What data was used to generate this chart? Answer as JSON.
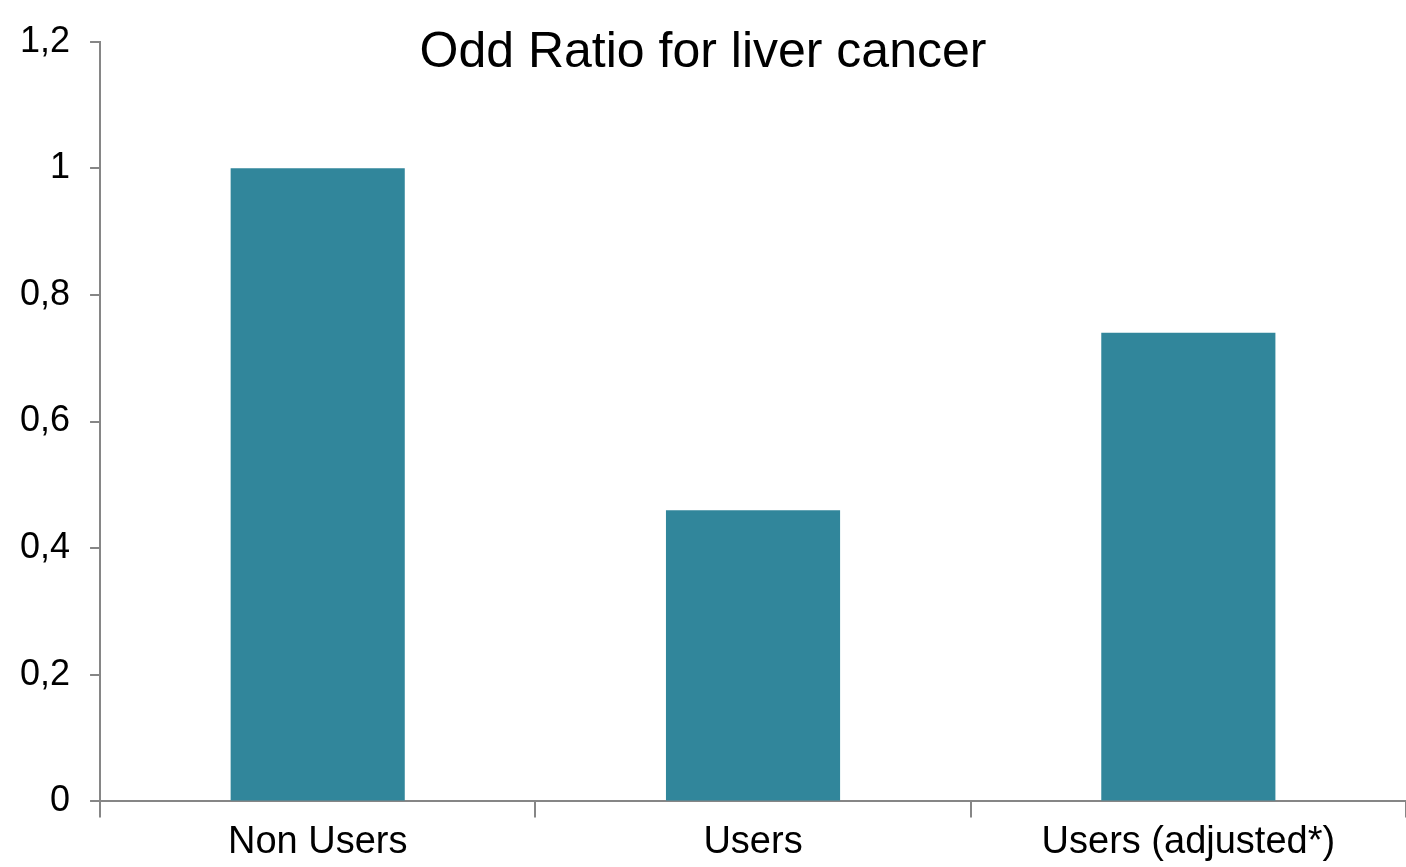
{
  "chart_data": {
    "type": "bar",
    "title": "Odd Ratio for liver cancer",
    "categories": [
      "Non Users",
      "Users",
      "Users (adjusted*)"
    ],
    "values": [
      1,
      0.46,
      0.74
    ],
    "color": "#31869b",
    "ylim": [
      0,
      1.2
    ],
    "yticks": [
      {
        "value": 0,
        "label": "0"
      },
      {
        "value": 0.2,
        "label": "0,2"
      },
      {
        "value": 0.4,
        "label": "0,4"
      },
      {
        "value": 0.6,
        "label": "0,6"
      },
      {
        "value": 0.8,
        "label": "0,8"
      },
      {
        "value": 1,
        "label": "1"
      },
      {
        "value": 1.2,
        "label": "1,2"
      }
    ],
    "grid": false,
    "legend": false
  }
}
